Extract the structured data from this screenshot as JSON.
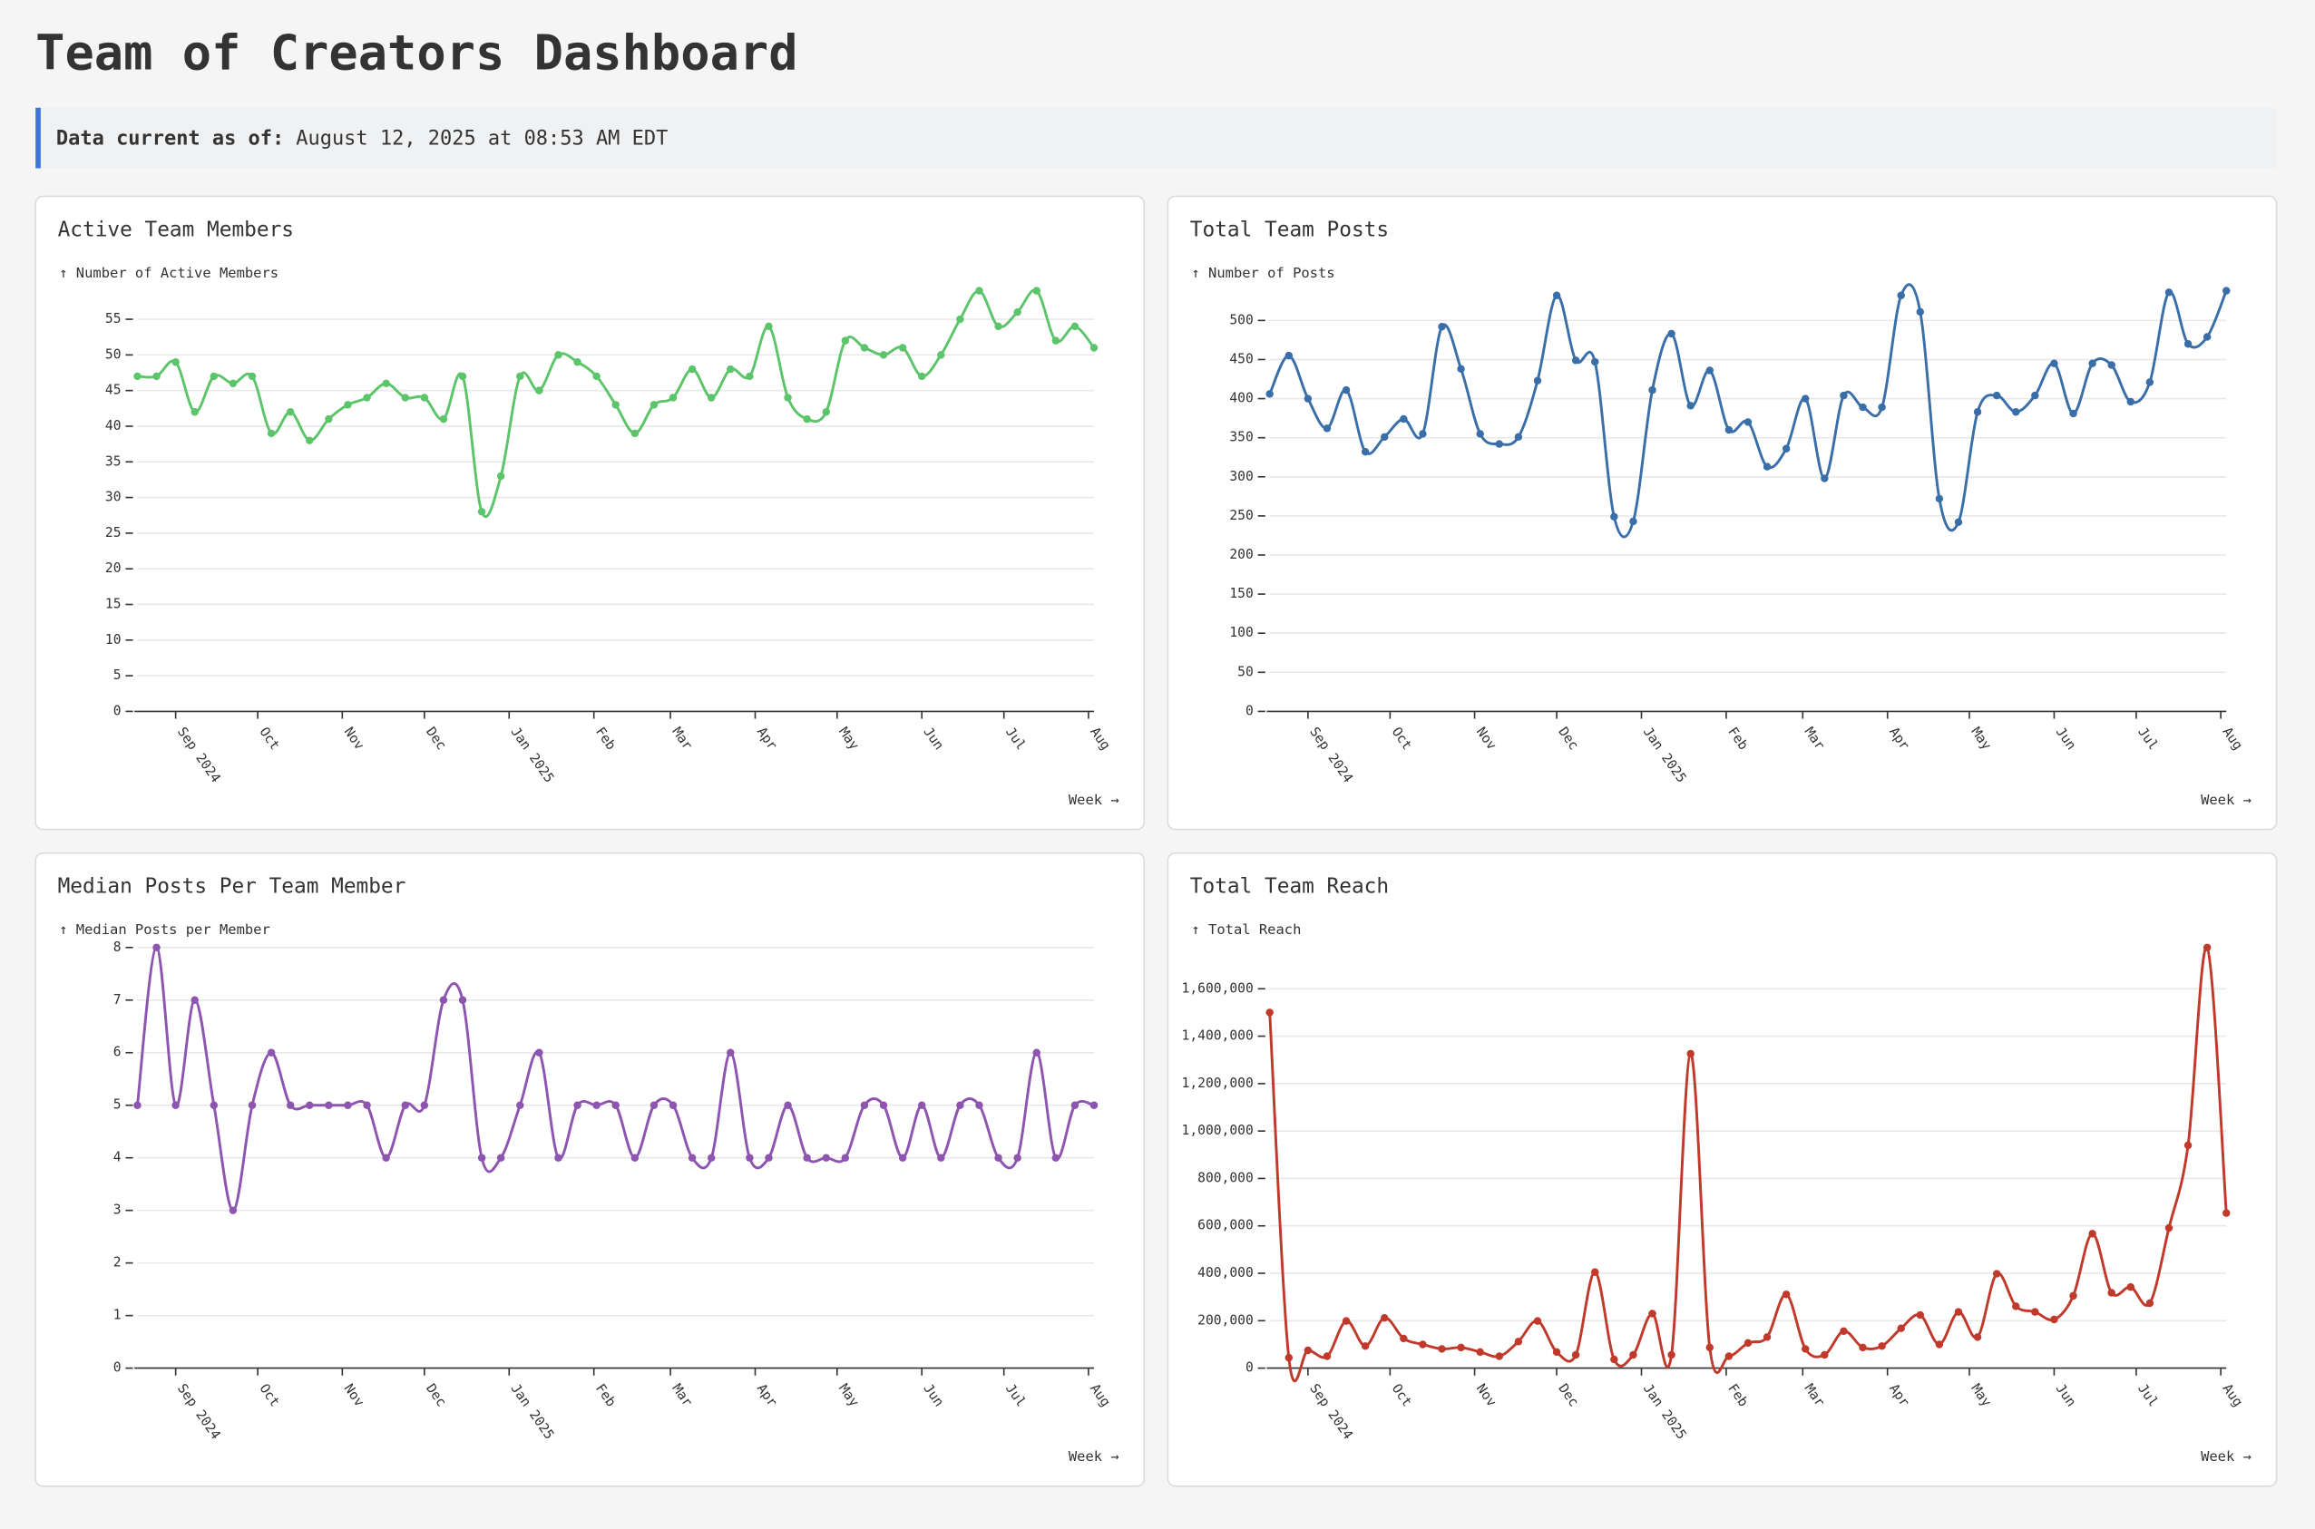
{
  "header": {
    "title": "Team of Creators Dashboard",
    "status_label": "Data current as of:",
    "status_value": "August 12, 2025 at 08:53 AM EDT"
  },
  "chart_data": [
    {
      "type": "line",
      "title": "Active Team Members",
      "y_label": "↑ Number of Active Members",
      "x_label": "Week →",
      "color": "#5cc46a",
      "grid": true,
      "xlim": [
        0,
        50
      ],
      "xticks": [
        {
          "value": 2,
          "label": "Sep 2024"
        },
        {
          "value": 6.29,
          "label": "Oct"
        },
        {
          "value": 10.71,
          "label": "Nov"
        },
        {
          "value": 15,
          "label": "Dec"
        },
        {
          "value": 19.43,
          "label": "Jan 2025"
        },
        {
          "value": 23.86,
          "label": "Feb"
        },
        {
          "value": 27.86,
          "label": "Mar"
        },
        {
          "value": 32.29,
          "label": "Apr"
        },
        {
          "value": 36.57,
          "label": "May"
        },
        {
          "value": 41,
          "label": "Jun"
        },
        {
          "value": 45.29,
          "label": "Jul"
        },
        {
          "value": 49.71,
          "label": "Aug"
        }
      ],
      "ylim": [
        0,
        59
      ],
      "yticks": [
        0,
        5,
        10,
        15,
        20,
        25,
        30,
        35,
        40,
        45,
        50,
        55
      ],
      "values": [
        47,
        47,
        49,
        42,
        47,
        46,
        47,
        39,
        42,
        38,
        41,
        43,
        44,
        46,
        44,
        44,
        41,
        47,
        28,
        33,
        47,
        45,
        50,
        49,
        47,
        43,
        39,
        43,
        44,
        48,
        44,
        48,
        47,
        54,
        44,
        41,
        42,
        52,
        51,
        50,
        51,
        47,
        50,
        55,
        59,
        54,
        56,
        59,
        52,
        54,
        51
      ]
    },
    {
      "type": "line",
      "title": "Total Team Posts",
      "y_label": "↑ Number of Posts",
      "x_label": "Week →",
      "color": "#3a6ea8",
      "grid": true,
      "xlim": [
        0,
        50
      ],
      "xticks": [
        {
          "value": 2,
          "label": "Sep 2024"
        },
        {
          "value": 6.29,
          "label": "Oct"
        },
        {
          "value": 10.71,
          "label": "Nov"
        },
        {
          "value": 15,
          "label": "Dec"
        },
        {
          "value": 19.43,
          "label": "Jan 2025"
        },
        {
          "value": 23.86,
          "label": "Feb"
        },
        {
          "value": 27.86,
          "label": "Mar"
        },
        {
          "value": 32.29,
          "label": "Apr"
        },
        {
          "value": 36.57,
          "label": "May"
        },
        {
          "value": 41,
          "label": "Jun"
        },
        {
          "value": 45.29,
          "label": "Jul"
        },
        {
          "value": 49.71,
          "label": "Aug"
        }
      ],
      "ylim": [
        0,
        538
      ],
      "yticks": [
        0,
        50,
        100,
        150,
        200,
        250,
        300,
        350,
        400,
        450,
        500
      ],
      "values": [
        406,
        455,
        400,
        362,
        411,
        332,
        351,
        374,
        355,
        492,
        438,
        355,
        342,
        351,
        423,
        532,
        449,
        447,
        249,
        243,
        411,
        483,
        391,
        436,
        360,
        370,
        313,
        336,
        400,
        298,
        404,
        389,
        389,
        532,
        511,
        272,
        242,
        383,
        404,
        383,
        404,
        445,
        381,
        445,
        443,
        396,
        421,
        536,
        470,
        479,
        538
      ]
    },
    {
      "type": "line",
      "title": "Median Posts Per Team Member",
      "y_label": "↑ Median Posts per Member",
      "x_label": "Week →",
      "color": "#8e55b0",
      "grid": true,
      "xlim": [
        0,
        50
      ],
      "xticks": [
        {
          "value": 2,
          "label": "Sep 2024"
        },
        {
          "value": 6.29,
          "label": "Oct"
        },
        {
          "value": 10.71,
          "label": "Nov"
        },
        {
          "value": 15,
          "label": "Dec"
        },
        {
          "value": 19.43,
          "label": "Jan 2025"
        },
        {
          "value": 23.86,
          "label": "Feb"
        },
        {
          "value": 27.86,
          "label": "Mar"
        },
        {
          "value": 32.29,
          "label": "Apr"
        },
        {
          "value": 36.57,
          "label": "May"
        },
        {
          "value": 41,
          "label": "Jun"
        },
        {
          "value": 45.29,
          "label": "Jul"
        },
        {
          "value": 49.71,
          "label": "Aug"
        }
      ],
      "ylim": [
        0,
        8
      ],
      "yticks": [
        0,
        1,
        2,
        3,
        4,
        5,
        6,
        7,
        8
      ],
      "values": [
        5,
        8,
        5,
        7,
        5,
        3,
        5,
        6,
        5,
        5,
        5,
        5,
        5,
        4,
        5,
        5,
        7,
        7,
        4,
        4,
        5,
        6,
        4,
        5,
        5,
        5,
        4,
        5,
        5,
        4,
        4,
        6,
        4,
        4,
        5,
        4,
        4,
        4,
        5,
        5,
        4,
        5,
        4,
        5,
        5,
        4,
        4,
        6,
        4,
        5,
        5
      ]
    },
    {
      "type": "line",
      "title": "Total Team Reach",
      "y_label": "↑ Total Reach",
      "x_label": "Week →",
      "color": "#c0392b",
      "grid": true,
      "xlim": [
        0,
        50
      ],
      "xticks": [
        {
          "value": 2,
          "label": "Sep 2024"
        },
        {
          "value": 6.29,
          "label": "Oct"
        },
        {
          "value": 10.71,
          "label": "Nov"
        },
        {
          "value": 15,
          "label": "Dec"
        },
        {
          "value": 19.43,
          "label": "Jan 2025"
        },
        {
          "value": 23.86,
          "label": "Feb"
        },
        {
          "value": 27.86,
          "label": "Mar"
        },
        {
          "value": 32.29,
          "label": "Apr"
        },
        {
          "value": 36.57,
          "label": "May"
        },
        {
          "value": 41,
          "label": "Jun"
        },
        {
          "value": 45.29,
          "label": "Jul"
        },
        {
          "value": 49.71,
          "label": "Aug"
        }
      ],
      "ylim": [
        0,
        1774000
      ],
      "yticks": [
        0,
        {
          "value": 200000,
          "label": "200,000"
        },
        {
          "value": 400000,
          "label": "400,000"
        },
        {
          "value": 600000,
          "label": "600,000"
        },
        {
          "value": 800000,
          "label": "800,000"
        },
        {
          "value": 1000000,
          "label": "1,000,000"
        },
        {
          "value": 1200000,
          "label": "1,200,000"
        },
        {
          "value": 1400000,
          "label": "1,400,000"
        },
        {
          "value": 1600000,
          "label": "1,600,000"
        }
      ],
      "values": [
        1500000,
        44000,
        75000,
        50000,
        199000,
        93000,
        212000,
        125000,
        100000,
        81000,
        87000,
        68000,
        50000,
        112000,
        199000,
        68000,
        56000,
        405000,
        37000,
        56000,
        230000,
        56000,
        1326000,
        87000,
        50000,
        106000,
        131000,
        311000,
        81000,
        56000,
        156000,
        87000,
        93000,
        168000,
        224000,
        100000,
        237000,
        131000,
        398000,
        261000,
        237000,
        205000,
        305000,
        567000,
        318000,
        342000,
        274000,
        591000,
        940000,
        1774000,
        654000
      ]
    }
  ]
}
